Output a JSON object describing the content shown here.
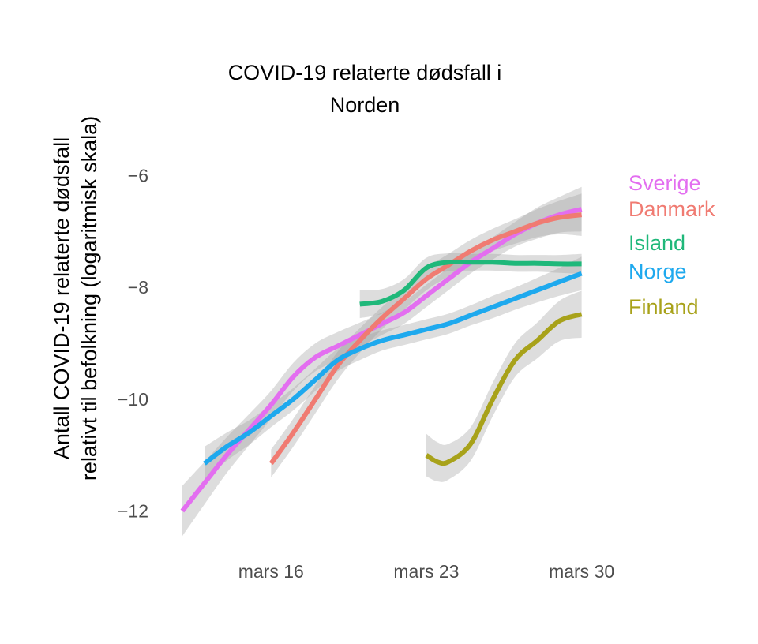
{
  "chart_data": {
    "type": "line",
    "title": "COVID-19 relaterte dødsfall i Norden",
    "title_lines": [
      "COVID-19 relaterte dødsfall i",
      "Norden"
    ],
    "xlabel": "",
    "ylabel": "Antall COVID-19 relaterte dødsfall relativt til befolkning (logaritmisk skala)",
    "ylabel_lines": [
      "Antall COVID-19 relaterte dødsfall",
      "relativt til befolkning (logaritmisk skala)"
    ],
    "x_ticks": [
      "mars 16",
      "mars 23",
      "mars 30"
    ],
    "x_tick_days": [
      16,
      23,
      30
    ],
    "xlim": [
      10.9,
      31.9
    ],
    "y_ticks": [
      -6,
      -8,
      -10,
      -12
    ],
    "y_tick_labels": [
      "−6",
      "−8",
      "−10",
      "−12"
    ],
    "ylim": [
      -12.6,
      -5.4
    ],
    "grid": false,
    "legend": "direct labels at right end of lines",
    "confidence_band": "grey",
    "series": [
      {
        "name": "Sverige",
        "color": "#e36ef0",
        "x": [
          12,
          13,
          14,
          15,
          16,
          17,
          18,
          19,
          20,
          21,
          22,
          23,
          24,
          25,
          26,
          27,
          28,
          29,
          30
        ],
        "y": [
          -12.0,
          -11.5,
          -11.0,
          -10.55,
          -10.1,
          -9.6,
          -9.25,
          -9.05,
          -8.85,
          -8.65,
          -8.45,
          -8.15,
          -7.85,
          -7.55,
          -7.3,
          -7.05,
          -6.85,
          -6.7,
          -6.6
        ],
        "band": [
          0.45,
          0.38,
          0.32,
          0.28,
          0.25,
          0.25,
          0.25,
          0.25,
          0.22,
          0.2,
          0.2,
          0.2,
          0.2,
          0.2,
          0.2,
          0.22,
          0.28,
          0.32,
          0.4
        ]
      },
      {
        "name": "Danmark",
        "color": "#f07b72",
        "x": [
          16,
          17,
          18,
          19,
          20,
          21,
          22,
          23,
          24,
          25,
          26,
          27,
          28,
          29,
          30
        ],
        "y": [
          -11.15,
          -10.6,
          -10.0,
          -9.4,
          -8.95,
          -8.55,
          -8.2,
          -7.85,
          -7.6,
          -7.35,
          -7.15,
          -7.0,
          -6.85,
          -6.75,
          -6.7
        ],
        "band": [
          0.25,
          0.25,
          0.25,
          0.25,
          0.22,
          0.2,
          0.2,
          0.2,
          0.2,
          0.2,
          0.2,
          0.22,
          0.25,
          0.3,
          0.38
        ]
      },
      {
        "name": "Island",
        "color": "#1fb87a",
        "x": [
          20,
          21,
          22,
          23,
          24,
          25,
          26,
          27,
          28,
          29,
          30
        ],
        "y": [
          -8.3,
          -8.25,
          -8.05,
          -7.65,
          -7.55,
          -7.55,
          -7.55,
          -7.57,
          -7.57,
          -7.58,
          -7.58
        ],
        "band": [
          0.25,
          0.22,
          0.2,
          0.18,
          0.16,
          0.15,
          0.15,
          0.15,
          0.15,
          0.16,
          0.18
        ]
      },
      {
        "name": "Norge",
        "color": "#1ea9ee",
        "x": [
          13,
          14,
          15,
          16,
          17,
          18,
          19,
          20,
          21,
          22,
          23,
          24,
          25,
          26,
          27,
          28,
          29,
          30
        ],
        "y": [
          -11.15,
          -10.85,
          -10.6,
          -10.3,
          -10.0,
          -9.65,
          -9.3,
          -9.1,
          -8.95,
          -8.85,
          -8.75,
          -8.65,
          -8.5,
          -8.35,
          -8.2,
          -8.05,
          -7.9,
          -7.75
        ],
        "band": [
          0.3,
          0.25,
          0.22,
          0.2,
          0.2,
          0.2,
          0.2,
          0.2,
          0.18,
          0.18,
          0.18,
          0.18,
          0.18,
          0.2,
          0.2,
          0.22,
          0.25,
          0.3
        ]
      },
      {
        "name": "Finland",
        "color": "#a8a21a",
        "x": [
          23,
          23.5,
          24,
          25,
          26,
          27,
          28,
          29,
          30
        ],
        "y": [
          -11.0,
          -11.12,
          -11.12,
          -10.8,
          -10.0,
          -9.3,
          -8.95,
          -8.6,
          -8.48
        ],
        "band": [
          0.38,
          0.35,
          0.32,
          0.3,
          0.3,
          0.3,
          0.32,
          0.36,
          0.42
        ]
      }
    ]
  }
}
